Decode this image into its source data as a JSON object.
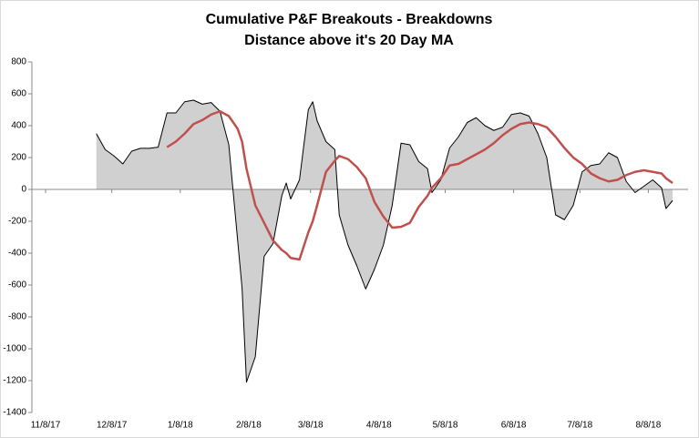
{
  "chart_data": {
    "type": "line",
    "title": "Cumulative P&F Breakouts - Breakdowns",
    "subtitle": "Distance above it's 20 Day MA",
    "x": [
      "2017-12-01",
      "2017-12-05",
      "2017-12-09",
      "2017-12-13",
      "2017-12-17",
      "2017-12-21",
      "2017-12-25",
      "2017-12-29",
      "2018-01-02",
      "2018-01-06",
      "2018-01-10",
      "2018-01-14",
      "2018-01-18",
      "2018-01-22",
      "2018-01-26",
      "2018-01-30",
      "2018-02-03",
      "2018-02-05",
      "2018-02-07",
      "2018-02-11",
      "2018-02-15",
      "2018-02-19",
      "2018-02-23",
      "2018-02-25",
      "2018-02-27",
      "2018-03-03",
      "2018-03-07",
      "2018-03-09",
      "2018-03-11",
      "2018-03-15",
      "2018-03-19",
      "2018-03-21",
      "2018-03-25",
      "2018-03-29",
      "2018-04-02",
      "2018-04-06",
      "2018-04-10",
      "2018-04-14",
      "2018-04-18",
      "2018-04-22",
      "2018-04-26",
      "2018-04-30",
      "2018-05-02",
      "2018-05-06",
      "2018-05-10",
      "2018-05-14",
      "2018-05-18",
      "2018-05-22",
      "2018-05-26",
      "2018-05-30",
      "2018-06-03",
      "2018-06-07",
      "2018-06-11",
      "2018-06-15",
      "2018-06-19",
      "2018-06-23",
      "2018-06-27",
      "2018-07-01",
      "2018-07-05",
      "2018-07-09",
      "2018-07-13",
      "2018-07-17",
      "2018-07-21",
      "2018-07-25",
      "2018-07-29",
      "2018-08-02",
      "2018-08-06",
      "2018-08-10",
      "2018-08-14",
      "2018-08-16",
      "2018-08-19"
    ],
    "series": [
      {
        "color": "#000000",
        "fill": "#d0d0d0",
        "values": [
          350,
          250,
          210,
          160,
          240,
          258,
          258,
          265,
          480,
          480,
          550,
          560,
          535,
          545,
          490,
          280,
          -320,
          -620,
          -1210,
          -1050,
          -420,
          -340,
          -40,
          40,
          -60,
          60,
          500,
          550,
          430,
          300,
          250,
          -160,
          -350,
          -480,
          -625,
          -500,
          -350,
          -100,
          290,
          280,
          175,
          130,
          -20,
          60,
          260,
          330,
          420,
          450,
          400,
          370,
          390,
          470,
          480,
          460,
          350,
          200,
          -160,
          -190,
          -100,
          110,
          150,
          160,
          230,
          200,
          50,
          -20,
          20,
          60,
          10,
          -120,
          -70
        ]
      },
      {
        "color": "#c0504d",
        "values": [
          null,
          null,
          null,
          null,
          null,
          null,
          null,
          null,
          265,
          300,
          350,
          410,
          435,
          470,
          490,
          460,
          380,
          300,
          130,
          -100,
          -210,
          -320,
          -380,
          -400,
          -430,
          -440,
          -270,
          -200,
          -100,
          110,
          180,
          210,
          190,
          140,
          70,
          -80,
          -170,
          -240,
          -235,
          -210,
          -110,
          -40,
          10,
          70,
          150,
          160,
          190,
          220,
          250,
          290,
          340,
          380,
          410,
          420,
          410,
          390,
          330,
          260,
          200,
          160,
          100,
          70,
          50,
          60,
          90,
          110,
          120,
          110,
          100,
          70,
          40
        ]
      }
    ],
    "xlim": [
      "2017-11-08",
      "2018-08-26"
    ],
    "xticks": [
      {
        "value": "2017-11-08",
        "label": "11/8/17"
      },
      {
        "value": "2017-12-08",
        "label": "12/8/17"
      },
      {
        "value": "2018-01-08",
        "label": "1/8/18"
      },
      {
        "value": "2018-02-08",
        "label": "2/8/18"
      },
      {
        "value": "2018-03-08",
        "label": "3/8/18"
      },
      {
        "value": "2018-04-08",
        "label": "4/8/18"
      },
      {
        "value": "2018-05-08",
        "label": "5/8/18"
      },
      {
        "value": "2018-06-08",
        "label": "6/8/18"
      },
      {
        "value": "2018-07-08",
        "label": "7/8/18"
      },
      {
        "value": "2018-08-08",
        "label": "8/8/18"
      }
    ],
    "ylim": [
      -1400,
      800
    ],
    "yticks": [
      -1400,
      -1200,
      -1000,
      -800,
      -600,
      -400,
      -200,
      0,
      200,
      400,
      600,
      800
    ]
  }
}
